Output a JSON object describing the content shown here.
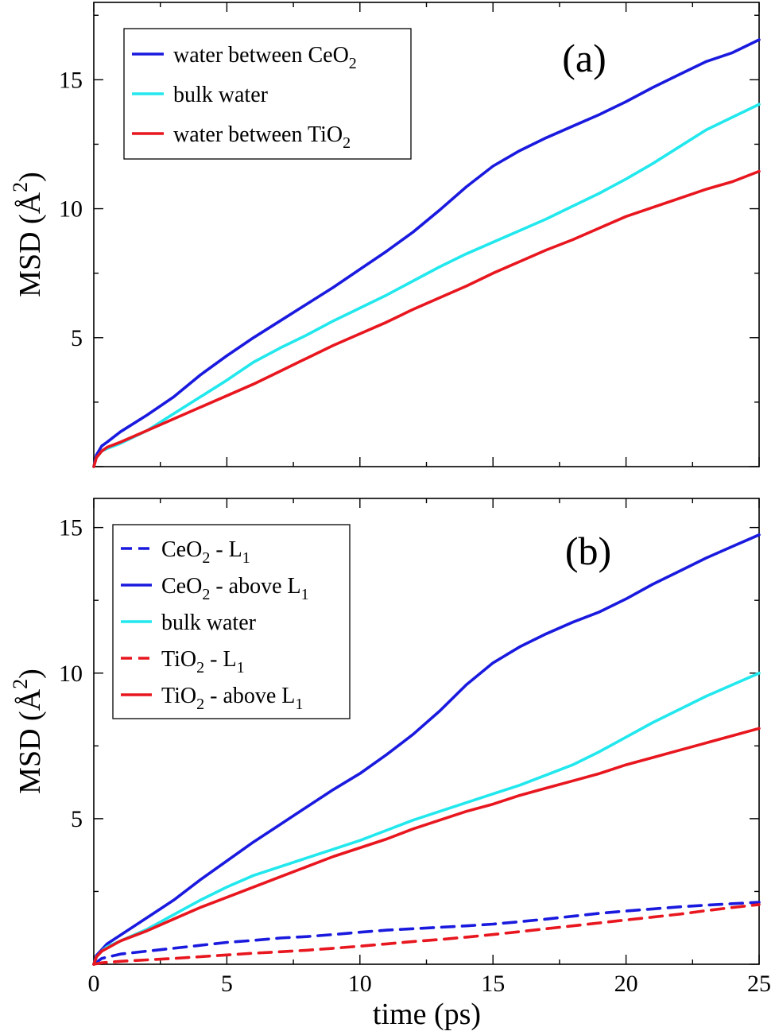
{
  "colors": {
    "blue": "#1a1adf",
    "cyan": "#22e8ee",
    "red": "#e8161e"
  },
  "chart_data": [
    {
      "type": "line",
      "panel_label": "(a)",
      "xlabel": "",
      "ylabel": "MSD (Å²)",
      "xlim": [
        0,
        25
      ],
      "ylim": [
        0,
        18
      ],
      "x_ticks": [
        0,
        5,
        10,
        15,
        20,
        25
      ],
      "y_ticks": [
        5,
        10,
        15
      ],
      "y_tick_labels": [
        "5",
        "10",
        "15"
      ],
      "legend_position": "top-left",
      "series": [
        {
          "name": "water between CeO2",
          "legend": {
            "main": "water between CeO",
            "sub": "2",
            "after": "",
            "sub2": ""
          },
          "color": "blue",
          "dashed": false,
          "x": [
            0,
            0.1,
            0.3,
            0.5,
            1,
            2,
            3,
            4,
            5,
            6,
            7,
            8,
            9,
            10,
            11,
            12,
            13,
            14,
            15,
            16,
            17,
            18,
            19,
            20,
            21,
            22,
            23,
            24,
            25
          ],
          "y": [
            0,
            0.45,
            0.8,
            0.95,
            1.35,
            2.0,
            2.7,
            3.55,
            4.3,
            5.0,
            5.65,
            6.3,
            6.95,
            7.65,
            8.35,
            9.1,
            9.95,
            10.85,
            11.65,
            12.25,
            12.75,
            13.2,
            13.65,
            14.15,
            14.7,
            15.2,
            15.7,
            16.05,
            16.55
          ]
        },
        {
          "name": "bulk water",
          "legend": {
            "main": "bulk water",
            "sub": "",
            "after": "",
            "sub2": ""
          },
          "color": "cyan",
          "dashed": false,
          "x": [
            0,
            0.1,
            0.3,
            0.5,
            1,
            2,
            3,
            4,
            5,
            6,
            7,
            8,
            9,
            10,
            11,
            12,
            13,
            14,
            15,
            16,
            17,
            18,
            19,
            20,
            21,
            22,
            23,
            24,
            25
          ],
          "y": [
            0,
            0.35,
            0.6,
            0.7,
            0.9,
            1.4,
            2.05,
            2.7,
            3.35,
            4.05,
            4.6,
            5.1,
            5.65,
            6.15,
            6.65,
            7.2,
            7.75,
            8.25,
            8.7,
            9.15,
            9.6,
            10.1,
            10.6,
            11.15,
            11.75,
            12.4,
            13.05,
            13.55,
            14.05
          ]
        },
        {
          "name": "water between TiO2",
          "legend": {
            "main": "water between TiO",
            "sub": "2",
            "after": "",
            "sub2": ""
          },
          "color": "red",
          "dashed": false,
          "x": [
            0,
            0.1,
            0.3,
            0.5,
            1,
            2,
            3,
            4,
            5,
            6,
            7,
            8,
            9,
            10,
            11,
            12,
            13,
            14,
            15,
            16,
            17,
            18,
            19,
            20,
            21,
            22,
            23,
            24,
            25
          ],
          "y": [
            0,
            0.35,
            0.6,
            0.75,
            0.95,
            1.4,
            1.85,
            2.3,
            2.75,
            3.2,
            3.7,
            4.2,
            4.7,
            5.15,
            5.6,
            6.1,
            6.55,
            7.0,
            7.5,
            7.95,
            8.4,
            8.8,
            9.25,
            9.7,
            10.05,
            10.4,
            10.75,
            11.05,
            11.45
          ]
        }
      ]
    },
    {
      "type": "line",
      "panel_label": "(b)",
      "xlabel": "time (ps)",
      "ylabel": "MSD (Å²)",
      "xlim": [
        0,
        25
      ],
      "ylim": [
        0,
        16
      ],
      "x_ticks": [
        0,
        5,
        10,
        15,
        20,
        25
      ],
      "x_tick_labels": [
        "0",
        "5",
        "10",
        "15",
        "20",
        "25"
      ],
      "y_ticks": [
        5,
        10,
        15
      ],
      "y_tick_labels": [
        "5",
        "10",
        "15"
      ],
      "legend_position": "top-left",
      "series": [
        {
          "name": "CeO2 - L1",
          "legend": {
            "main": "CeO",
            "sub": "2",
            "after": " - L",
            "sub2": "1"
          },
          "color": "blue",
          "dashed": true,
          "x": [
            0,
            0.3,
            1,
            2,
            3,
            4,
            5,
            6,
            7,
            8,
            9,
            10,
            11,
            12,
            13,
            14,
            15,
            16,
            17,
            18,
            19,
            20,
            21,
            22,
            23,
            24,
            25
          ],
          "y": [
            0,
            0.2,
            0.35,
            0.45,
            0.55,
            0.65,
            0.75,
            0.82,
            0.9,
            0.95,
            1.02,
            1.1,
            1.17,
            1.22,
            1.27,
            1.32,
            1.38,
            1.46,
            1.55,
            1.65,
            1.75,
            1.83,
            1.9,
            1.97,
            2.03,
            2.08,
            2.13
          ]
        },
        {
          "name": "CeO2 - above L1",
          "legend": {
            "main": "CeO",
            "sub": "2",
            "after": " - above L",
            "sub2": "1"
          },
          "color": "blue",
          "dashed": false,
          "x": [
            0,
            0.1,
            0.3,
            0.5,
            1,
            2,
            3,
            4,
            5,
            6,
            7,
            8,
            9,
            10,
            11,
            12,
            13,
            14,
            15,
            16,
            17,
            18,
            19,
            20,
            21,
            22,
            23,
            24,
            25
          ],
          "y": [
            0,
            0.3,
            0.5,
            0.7,
            1.0,
            1.6,
            2.2,
            2.9,
            3.55,
            4.2,
            4.8,
            5.4,
            6.0,
            6.55,
            7.2,
            7.9,
            8.7,
            9.6,
            10.35,
            10.9,
            11.35,
            11.75,
            12.1,
            12.55,
            13.05,
            13.5,
            13.95,
            14.35,
            14.75
          ]
        },
        {
          "name": "bulk water",
          "legend": {
            "main": "bulk water",
            "sub": "",
            "after": "",
            "sub2": ""
          },
          "color": "cyan",
          "dashed": false,
          "x": [
            0,
            0.1,
            0.3,
            0.5,
            1,
            2,
            3,
            4,
            5,
            6,
            7,
            8,
            9,
            10,
            11,
            12,
            13,
            14,
            15,
            16,
            17,
            18,
            19,
            20,
            21,
            22,
            23,
            24,
            25
          ],
          "y": [
            0,
            0.25,
            0.45,
            0.6,
            0.8,
            1.2,
            1.7,
            2.2,
            2.65,
            3.05,
            3.35,
            3.65,
            3.95,
            4.25,
            4.6,
            4.95,
            5.25,
            5.55,
            5.85,
            6.15,
            6.5,
            6.85,
            7.3,
            7.8,
            8.3,
            8.75,
            9.2,
            9.6,
            10.0
          ]
        },
        {
          "name": "TiO2 - L1",
          "legend": {
            "main": "TiO",
            "sub": "2",
            "after": " - L",
            "sub2": "1"
          },
          "color": "red",
          "dashed": true,
          "x": [
            0,
            0.3,
            1,
            2,
            3,
            4,
            5,
            6,
            7,
            8,
            9,
            10,
            11,
            12,
            13,
            14,
            15,
            16,
            17,
            18,
            19,
            20,
            21,
            22,
            23,
            24,
            25
          ],
          "y": [
            0,
            0.05,
            0.1,
            0.15,
            0.2,
            0.26,
            0.32,
            0.38,
            0.43,
            0.48,
            0.55,
            0.62,
            0.7,
            0.78,
            0.85,
            0.93,
            1.02,
            1.12,
            1.22,
            1.32,
            1.42,
            1.52,
            1.62,
            1.72,
            1.84,
            1.95,
            2.05
          ]
        },
        {
          "name": "TiO2 - above L1",
          "legend": {
            "main": "TiO",
            "sub": "2",
            "after": " - above L",
            "sub2": "1"
          },
          "color": "red",
          "dashed": false,
          "x": [
            0,
            0.1,
            0.3,
            0.5,
            1,
            2,
            3,
            4,
            5,
            6,
            7,
            8,
            9,
            10,
            11,
            12,
            13,
            14,
            15,
            16,
            17,
            18,
            19,
            20,
            21,
            22,
            23,
            24,
            25
          ],
          "y": [
            0,
            0.25,
            0.45,
            0.55,
            0.8,
            1.15,
            1.55,
            1.95,
            2.3,
            2.65,
            3.0,
            3.35,
            3.7,
            4.0,
            4.3,
            4.65,
            4.95,
            5.25,
            5.5,
            5.8,
            6.05,
            6.3,
            6.55,
            6.85,
            7.1,
            7.35,
            7.6,
            7.85,
            8.1
          ]
        }
      ]
    }
  ]
}
